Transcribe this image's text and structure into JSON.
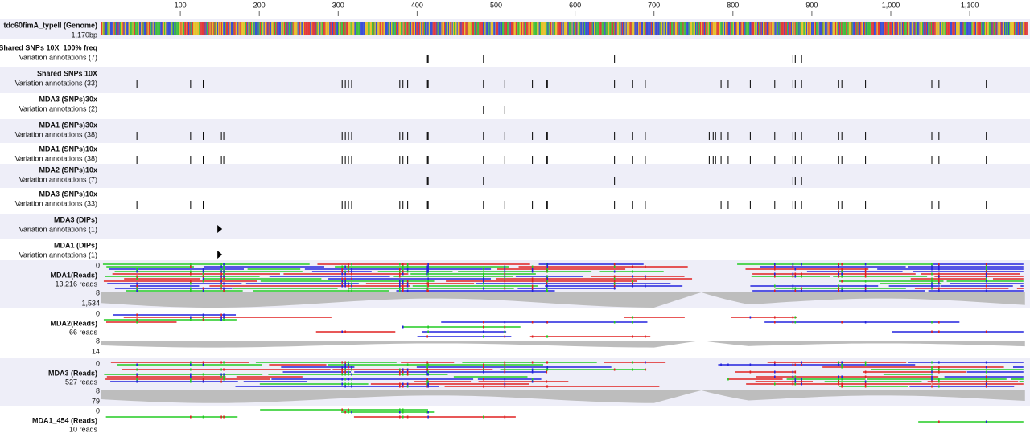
{
  "ruler": {
    "ticks": [
      100,
      200,
      300,
      400,
      500,
      600,
      700,
      800,
      900,
      {
        "value": 1000,
        "label": "1,000"
      },
      {
        "value": 1100,
        "label": "1,100"
      }
    ]
  },
  "genome": {
    "name": "tdc60fimA_typeII (Genome)",
    "length": "1,170bp"
  },
  "variant_tracks": [
    {
      "name": "Shared SNPs 10X_100% freq",
      "subtitle": "Variation annotations (7)",
      "positions": [
        413,
        414,
        484,
        650,
        876,
        879,
        887
      ]
    },
    {
      "name": "Shared SNPs 10X",
      "subtitle": "Variation annotations (33)",
      "positions": [
        45,
        113,
        129,
        305,
        309,
        313,
        317,
        378,
        382,
        388,
        413,
        414,
        484,
        511,
        546,
        564,
        565,
        650,
        673,
        689,
        785,
        794,
        822,
        853,
        876,
        879,
        887,
        934,
        938,
        968,
        1052,
        1061,
        1121
      ]
    },
    {
      "name": "MDA3 (SNPs)30x",
      "subtitle": "Variation annotations (2)",
      "positions": [
        484,
        511
      ]
    },
    {
      "name": "MDA1 (SNPs)30x",
      "subtitle": "Variation annotations (38)",
      "positions": [
        45,
        113,
        129,
        152,
        155,
        305,
        309,
        313,
        317,
        378,
        382,
        388,
        413,
        414,
        484,
        511,
        546,
        564,
        565,
        650,
        673,
        689,
        770,
        775,
        778,
        785,
        794,
        822,
        853,
        876,
        879,
        887,
        934,
        938,
        968,
        1052,
        1061,
        1121
      ]
    },
    {
      "name": "MDA1 (SNPs)10x",
      "subtitle": "Variation annotations (38)",
      "positions": [
        45,
        113,
        129,
        152,
        155,
        305,
        309,
        313,
        317,
        378,
        382,
        388,
        413,
        414,
        484,
        511,
        546,
        564,
        565,
        650,
        673,
        689,
        770,
        775,
        778,
        785,
        794,
        822,
        853,
        876,
        879,
        887,
        934,
        938,
        968,
        1052,
        1061,
        1121
      ]
    },
    {
      "name": "MDA2 (SNPs)10x",
      "subtitle": "Variation annotations (7)",
      "positions": [
        413,
        414,
        484,
        650,
        876,
        879,
        887
      ]
    },
    {
      "name": "MDA3 (SNPs)10x",
      "subtitle": "Variation annotations (33)",
      "positions": [
        45,
        113,
        129,
        305,
        309,
        313,
        317,
        378,
        382,
        388,
        413,
        414,
        484,
        511,
        546,
        564,
        565,
        650,
        673,
        689,
        785,
        794,
        822,
        853,
        876,
        879,
        887,
        934,
        938,
        968,
        1052,
        1061,
        1121
      ]
    },
    {
      "name": "MDA3 (DIPs)",
      "subtitle": "Variation annotations (1)",
      "positions": [
        149
      ],
      "kind": "dip"
    },
    {
      "name": "MDA1 (DIPs)",
      "subtitle": "Variation annotations (1)",
      "positions": [
        149
      ],
      "kind": "dip"
    }
  ],
  "read_tracks": [
    {
      "name": "MDA1(Reads)",
      "count": "13,216 reads",
      "axis_top": 0,
      "axis_mid": 8,
      "max_coverage": "1,534"
    },
    {
      "name": "MDA2(Reads)",
      "count": "66 reads",
      "axis_top": 0,
      "axis_mid": 8,
      "max_coverage": 14
    },
    {
      "name": "MDA3 (Reads)",
      "count": "527 reads",
      "axis_top": 0,
      "axis_mid": 8,
      "max_coverage": 79
    },
    {
      "name": "MDA1_454 (Reads)",
      "count": "10 reads",
      "axis_top": 0
    }
  ]
}
